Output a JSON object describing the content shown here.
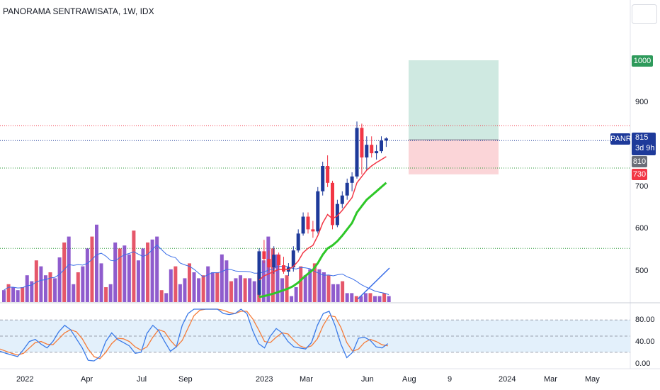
{
  "header": {
    "title": "PANORAMA SENTRAWISATA, 1W, IDX"
  },
  "colors": {
    "up": "#1e3a9a",
    "down": "#f23645",
    "ema_fast": "#f23645",
    "ema_slow": "#2ec728",
    "volume_up": "#7b3fc4",
    "volume_down": "#e03a50",
    "volume_ma": "#3a6ee8",
    "target_zone": "#cfe9e1",
    "stop_zone": "#fbd5d8",
    "stoch_k": "#3a7ae8",
    "stoch_d": "#f57c3a",
    "stoch_band": "#e3f0fb"
  },
  "price_scale": {
    "ticks": [
      "1000",
      "900",
      "700",
      "600",
      "500"
    ],
    "badge_target": "1000",
    "badge_symbol": "PANR",
    "badge_price": "815",
    "badge_countdown": "3d 9h",
    "badge_prev": "810",
    "badge_stop": "730"
  },
  "stoch_scale": {
    "ticks": [
      "80.00",
      "40.00",
      "0.00"
    ]
  },
  "time_axis": {
    "labels": [
      "2022",
      "Apr",
      "Jul",
      "Sep",
      "2023",
      "Mar",
      "Jun",
      "Aug",
      "9",
      "2024",
      "Mar",
      "May"
    ]
  },
  "chart_data": {
    "type": "candlestick",
    "symbol": "PANR",
    "exchange": "IDX",
    "interval": "1W",
    "price_range": [
      440,
      1090
    ],
    "horizontal_levels": [
      {
        "value": 845,
        "style": "dotted",
        "color": "#f23645"
      },
      {
        "value": 810,
        "style": "dotted",
        "color": "#1e3a9a"
      },
      {
        "value": 745,
        "style": "dotted",
        "color": "#2e9a3a"
      },
      {
        "value": 555,
        "style": "dotted",
        "color": "#2e9a3a"
      }
    ],
    "position": {
      "entry": 812,
      "target": 1000,
      "stop": 730
    },
    "candles_2023": [
      {
        "o": 445,
        "h": 555,
        "l": 440,
        "c": 548
      },
      {
        "o": 548,
        "h": 575,
        "l": 520,
        "c": 530
      },
      {
        "o": 530,
        "h": 550,
        "l": 500,
        "c": 510
      },
      {
        "o": 510,
        "h": 560,
        "l": 495,
        "c": 540
      },
      {
        "o": 540,
        "h": 545,
        "l": 505,
        "c": 515
      },
      {
        "o": 515,
        "h": 535,
        "l": 495,
        "c": 500
      },
      {
        "o": 500,
        "h": 520,
        "l": 490,
        "c": 510
      },
      {
        "o": 510,
        "h": 560,
        "l": 500,
        "c": 550
      },
      {
        "o": 550,
        "h": 600,
        "l": 545,
        "c": 590
      },
      {
        "o": 590,
        "h": 640,
        "l": 585,
        "c": 630
      },
      {
        "o": 630,
        "h": 640,
        "l": 590,
        "c": 600
      },
      {
        "o": 600,
        "h": 620,
        "l": 580,
        "c": 595
      },
      {
        "o": 595,
        "h": 700,
        "l": 590,
        "c": 690
      },
      {
        "o": 690,
        "h": 760,
        "l": 680,
        "c": 750
      },
      {
        "o": 750,
        "h": 775,
        "l": 700,
        "c": 710
      },
      {
        "o": 710,
        "h": 715,
        "l": 600,
        "c": 610
      },
      {
        "o": 610,
        "h": 670,
        "l": 605,
        "c": 660
      },
      {
        "o": 660,
        "h": 690,
        "l": 650,
        "c": 680
      },
      {
        "o": 680,
        "h": 720,
        "l": 670,
        "c": 710
      },
      {
        "o": 710,
        "h": 735,
        "l": 690,
        "c": 725
      },
      {
        "o": 725,
        "h": 855,
        "l": 720,
        "c": 840
      },
      {
        "o": 840,
        "h": 850,
        "l": 730,
        "c": 770
      },
      {
        "o": 770,
        "h": 820,
        "l": 740,
        "c": 800
      },
      {
        "o": 800,
        "h": 820,
        "l": 770,
        "c": 780
      },
      {
        "o": 780,
        "h": 800,
        "l": 765,
        "c": 785
      },
      {
        "o": 785,
        "h": 820,
        "l": 780,
        "c": 810
      },
      {
        "o": 810,
        "h": 818,
        "l": 795,
        "c": 815
      }
    ],
    "ema_fast": [
      480,
      490,
      495,
      500,
      505,
      505,
      505,
      512,
      525,
      545,
      555,
      562,
      585,
      615,
      635,
      625,
      632,
      645,
      660,
      675,
      710,
      725,
      740,
      750,
      758,
      765,
      772
    ],
    "ema_slow": [
      440,
      442,
      445,
      448,
      452,
      456,
      460,
      466,
      474,
      485,
      495,
      504,
      520,
      540,
      555,
      562,
      572,
      585,
      600,
      615,
      640,
      655,
      670,
      680,
      690,
      700,
      710
    ],
    "volume": [
      4,
      6,
      5,
      4,
      5,
      9,
      7,
      14,
      12,
      9,
      10,
      8,
      15,
      20,
      22,
      6,
      10,
      12,
      18,
      22,
      26,
      13,
      5,
      6,
      20,
      18,
      19,
      16,
      24,
      14,
      18,
      20,
      21,
      22,
      4,
      3,
      11,
      12,
      6,
      8,
      13,
      10,
      8,
      9,
      12,
      10,
      10,
      16,
      14,
      7,
      8,
      9,
      8,
      8,
      7,
      10,
      14,
      22,
      18,
      16,
      8,
      9,
      2,
      5,
      12,
      9,
      11,
      13,
      11,
      10,
      9,
      6,
      6,
      7,
      3,
      3,
      2,
      2,
      3,
      3,
      2,
      2,
      3,
      2
    ],
    "stochastic": {
      "band": [
        20,
        80
      ],
      "k": [
        22,
        18,
        15,
        12,
        25,
        40,
        44,
        35,
        28,
        40,
        58,
        70,
        62,
        45,
        28,
        5,
        4,
        12,
        40,
        56,
        44,
        38,
        32,
        18,
        20,
        55,
        70,
        60,
        40,
        22,
        30,
        70,
        92,
        100,
        100,
        100,
        100,
        100,
        92,
        90,
        92,
        100,
        92,
        60,
        36,
        28,
        50,
        64,
        56,
        40,
        30,
        28,
        26,
        38,
        70,
        92,
        96,
        70,
        35,
        10,
        20,
        46,
        48,
        42,
        30,
        28,
        36
      ],
      "d": [
        26,
        22,
        18,
        15,
        18,
        28,
        38,
        40,
        35,
        34,
        45,
        56,
        62,
        58,
        45,
        26,
        12,
        8,
        20,
        36,
        46,
        45,
        40,
        30,
        24,
        30,
        48,
        62,
        58,
        42,
        30,
        42,
        65,
        88,
        98,
        100,
        100,
        100,
        98,
        94,
        92,
        96,
        96,
        82,
        62,
        40,
        38,
        48,
        56,
        54,
        42,
        32,
        28,
        32,
        45,
        70,
        88,
        86,
        66,
        38,
        22,
        26,
        38,
        44,
        40,
        34,
        32
      ]
    }
  }
}
